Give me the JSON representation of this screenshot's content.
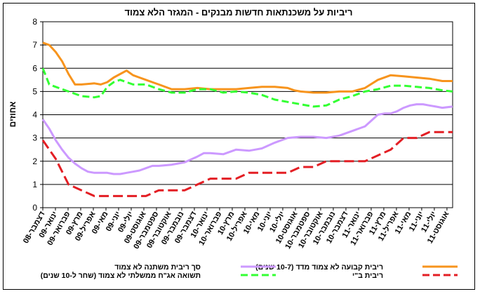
{
  "chart_data": {
    "type": "line",
    "title": "ריביות על משכנתאות חדשות מבנקים - המגזר הלא צמוד",
    "ylabel": "אחוזים",
    "xlabel": "",
    "ylim": [
      0,
      8
    ],
    "yticks": [
      0,
      1,
      2,
      3,
      4,
      5,
      6,
      7,
      8
    ],
    "grid": true,
    "legend_position": "bottom",
    "categories": [
      "דצמבר-08",
      "ינואר-09",
      "פברואר-09",
      "מרץ-09",
      "אפריל-09",
      "מאי-09",
      "יוני-09",
      "יולי-09",
      "אוגוסט-09",
      "ספטמבר-09",
      "אוקטובר-09",
      "נובמבר-09",
      "דצמבר-09",
      "ינואר-10",
      "פברואר-10",
      "מרץ-10",
      "אפריל-10",
      "מאי-10",
      "יוני-10",
      "יולי-10",
      "אוגוסט-10",
      "ספטמבר-10",
      "אוקטובר-10",
      "נובמבר-10",
      "דצמבר-10",
      "ינואר-11",
      "פברואר-11",
      "מרץ-11",
      "אפריל-11",
      "מאי-11",
      "יוני-11",
      "יולי-11",
      "אוגוסט-11"
    ],
    "x_positions": [
      0.0,
      0.98,
      1.96,
      2.94,
      3.92,
      4.9,
      5.88,
      6.86,
      7.84,
      8.82,
      9.8,
      10.78,
      11.76,
      12.74,
      13.72,
      14.7,
      15.68,
      16.66,
      17.64,
      18.62,
      19.6,
      20.58,
      21.56,
      22.54,
      23.52,
      24.5,
      25.48,
      26.46,
      27.44,
      28.42,
      29.4,
      30.38,
      31.36
    ],
    "x_max": 31.8,
    "series": [
      {
        "name": "ריבית קבועה לא צמוד מדד (10-7 שנים)",
        "color": "#F7941D",
        "dash": "",
        "x": [
          0,
          0.5,
          1,
          1.5,
          2,
          2.5,
          3,
          4,
          4.5,
          5,
          5.5,
          6,
          6.5,
          7,
          7.5,
          8,
          8.5,
          9,
          10,
          11,
          12,
          13,
          14,
          15,
          16,
          17,
          18,
          19,
          19.5,
          20,
          21,
          22,
          23,
          24,
          25,
          26,
          27,
          28,
          29,
          30,
          31,
          31.8
        ],
        "y": [
          7.1,
          7.0,
          6.7,
          6.3,
          5.75,
          5.3,
          5.3,
          5.35,
          5.3,
          5.4,
          5.6,
          5.75,
          5.9,
          5.7,
          5.6,
          5.5,
          5.4,
          5.3,
          5.1,
          5.1,
          5.15,
          5.1,
          5.1,
          5.1,
          5.15,
          5.2,
          5.2,
          5.15,
          5.05,
          5.0,
          4.95,
          4.95,
          5.0,
          5.0,
          5.15,
          5.5,
          5.7,
          5.65,
          5.6,
          5.55,
          5.45,
          5.45
        ]
      },
      {
        "name": "סך ריבית משתנה לא צמוד",
        "color": "#CC99FF",
        "dash": "",
        "x": [
          0,
          0.5,
          1,
          1.5,
          2,
          2.5,
          3,
          3.5,
          4,
          4.5,
          5,
          5.5,
          6,
          6.5,
          7,
          7.5,
          8,
          8.5,
          9,
          10,
          11,
          12,
          12.5,
          13,
          14,
          15,
          16,
          16.5,
          17,
          18,
          19,
          20,
          21,
          22,
          23,
          24,
          25,
          26,
          26.5,
          27,
          27.5,
          28,
          28.5,
          29,
          29.5,
          30,
          30.5,
          31,
          31.8
        ],
        "y": [
          3.8,
          3.4,
          2.9,
          2.5,
          2.15,
          1.9,
          1.7,
          1.55,
          1.5,
          1.5,
          1.5,
          1.45,
          1.45,
          1.5,
          1.55,
          1.6,
          1.7,
          1.8,
          1.8,
          1.85,
          1.95,
          2.2,
          2.35,
          2.35,
          2.3,
          2.5,
          2.45,
          2.5,
          2.55,
          2.8,
          3.0,
          3.05,
          3.05,
          3.0,
          3.1,
          3.3,
          3.5,
          4.0,
          4.05,
          4.05,
          4.15,
          4.3,
          4.4,
          4.45,
          4.45,
          4.4,
          4.35,
          4.3,
          4.35
        ]
      },
      {
        "name": "ריבית ב\"י",
        "color": "#E31E24",
        "dash": "14,6",
        "x": [
          0,
          1,
          2,
          3,
          4,
          5,
          6,
          7,
          8,
          9,
          10,
          11,
          12,
          13,
          14,
          15,
          16,
          17,
          18,
          19,
          20,
          21,
          22,
          23,
          24,
          25,
          26,
          27,
          28,
          29,
          30,
          31.8
        ],
        "y": [
          2.9,
          2.1,
          1.0,
          0.75,
          0.5,
          0.5,
          0.5,
          0.5,
          0.5,
          0.75,
          0.75,
          0.75,
          1.0,
          1.25,
          1.25,
          1.25,
          1.5,
          1.5,
          1.5,
          1.5,
          1.75,
          1.75,
          2.0,
          2.0,
          2.0,
          2.0,
          2.25,
          2.5,
          3.0,
          3.0,
          3.25,
          3.25
        ]
      },
      {
        "name": "תשואה אג\"ח ממשלתי לא צמוד (שחר ל-10 שנים)",
        "color": "#33FF33",
        "dash": "10,5",
        "x": [
          0,
          0.5,
          1,
          1.5,
          2,
          3,
          4,
          4.5,
          5,
          5.5,
          6,
          7,
          8,
          9,
          10,
          11,
          12,
          13,
          14,
          15,
          16,
          17,
          18,
          19,
          20,
          21,
          22,
          23,
          24,
          25,
          26,
          27,
          28,
          29,
          30,
          31,
          31.8
        ],
        "y": [
          6.0,
          5.3,
          5.2,
          5.1,
          5.0,
          4.8,
          4.75,
          4.8,
          5.2,
          5.4,
          5.5,
          5.3,
          5.3,
          5.1,
          4.95,
          4.95,
          5.1,
          5.1,
          4.95,
          5.0,
          4.95,
          4.85,
          4.65,
          4.55,
          4.45,
          4.35,
          4.4,
          4.65,
          4.8,
          5.0,
          5.1,
          5.25,
          5.25,
          5.2,
          5.15,
          5.05,
          5.0
        ]
      }
    ]
  }
}
